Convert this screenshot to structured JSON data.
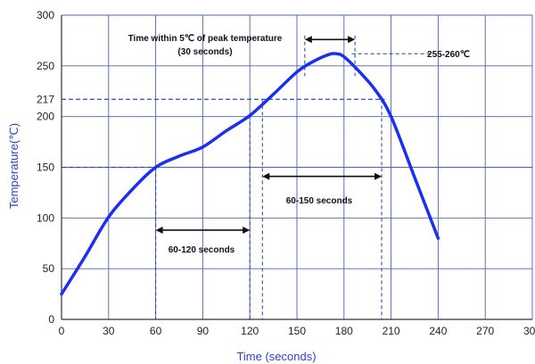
{
  "chart_data": {
    "type": "line",
    "xlabel": "Time (seconds)",
    "ylabel": "Temperature(℃)",
    "xlim": [
      0,
      300
    ],
    "ylim": [
      0,
      300
    ],
    "x_ticks": [
      0,
      30,
      60,
      90,
      120,
      150,
      180,
      210,
      240,
      270,
      300
    ],
    "y_ticks": [
      0,
      50,
      100,
      150,
      200,
      250,
      300
    ],
    "extra_y_tick": 217,
    "grid": true,
    "series": [
      {
        "x": [
          0,
          15,
          30,
          45,
          60,
          75,
          90,
          105,
          120,
          135,
          150,
          160,
          170,
          175,
          180,
          190,
          200,
          210,
          225,
          240
        ],
        "y": [
          25,
          62,
          101,
          128,
          150,
          161,
          170,
          186,
          201,
          222,
          244,
          254,
          261,
          262,
          259,
          244,
          226,
          200,
          140,
          80
        ],
        "color": "#1a2ff0"
      }
    ],
    "annotations": [
      {
        "text": "Time within 5℃ of peak temperature"
      },
      {
        "text": "(30 seconds)"
      },
      {
        "text": "255-260℃"
      },
      {
        "text": "60-150 seconds"
      },
      {
        "text": "60-120 seconds"
      }
    ]
  }
}
